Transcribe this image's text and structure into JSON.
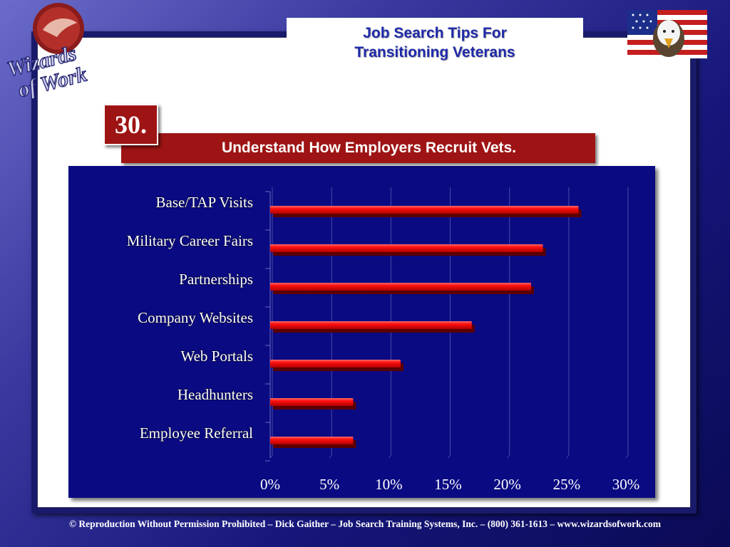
{
  "header": {
    "title_line1": "Job Search Tips For",
    "title_line2": "Transitioning Veterans"
  },
  "logo": {
    "text_line1": "Wizards",
    "text_line2": "of Work"
  },
  "badge": {
    "number": "30."
  },
  "banner": {
    "text": "Understand How Employers Recruit Vets."
  },
  "colors": {
    "bar": "#ff1010",
    "panel": "#0a0a82",
    "banner": "#9e1414",
    "title": "#1f2aa8"
  },
  "chart_data": {
    "type": "bar",
    "orientation": "horizontal",
    "categories": [
      "Base/TAP Visits",
      "Military Career Fairs",
      "Partnerships",
      "Company Websites",
      "Web Portals",
      "Headhunters",
      "Employee Referral"
    ],
    "values": [
      26,
      23,
      22,
      17,
      11,
      7,
      7
    ],
    "x_ticks": [
      "0%",
      "5%",
      "10%",
      "15%",
      "20%",
      "25%",
      "30%"
    ],
    "xlim": [
      0,
      30
    ],
    "grid": "vertical",
    "legend": "none"
  },
  "footer": {
    "text": "© Reproduction Without Permission Prohibited – Dick Gaither – Job Search Training Systems, Inc. – (800) 361-1613 – www.wizardsofwork.com"
  }
}
